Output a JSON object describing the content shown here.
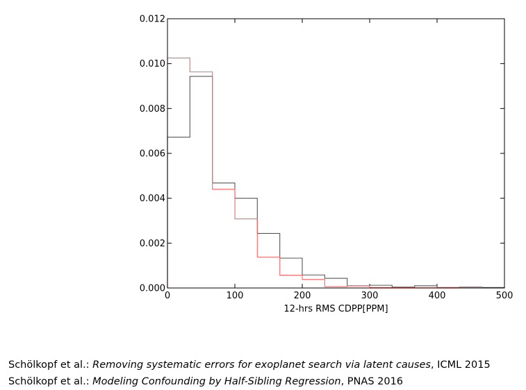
{
  "chart_data": {
    "type": "histogram",
    "title": "",
    "xlabel": "12-hrs RMS CDPP[PPM]",
    "ylabel": "",
    "xlim": [
      0,
      500
    ],
    "ylim": [
      0,
      0.012
    ],
    "x_ticks": [
      "0",
      "100",
      "200",
      "300",
      "400",
      "500"
    ],
    "y_ticks": [
      "0.000",
      "0.002",
      "0.004",
      "0.006",
      "0.008",
      "0.010",
      "0.012"
    ],
    "bin_edges": [
      0,
      33.3,
      66.7,
      100,
      133.3,
      166.7,
      200,
      233.3,
      266.7,
      300,
      333.3,
      366.7,
      400,
      433.3,
      466.7,
      500
    ],
    "grid": false,
    "series": [
      {
        "color": "#555555",
        "values": [
          0.00672,
          0.00943,
          0.00468,
          0.004,
          0.00243,
          0.00133,
          0.00058,
          0.00043,
          0.0001,
          0.00012,
          4e-05,
          0.0001,
          2e-05,
          4e-05,
          2e-05
        ]
      },
      {
        "color": "#ff6666",
        "values": [
          0.01025,
          0.00963,
          0.0044,
          0.00308,
          0.00138,
          0.00057,
          0.00038,
          6e-05,
          9e-05,
          2e-05,
          2e-05,
          1e-05,
          1e-05,
          5e-05,
          0.0
        ]
      }
    ]
  },
  "references": [
    {
      "authors": "Schölkopf et al.: ",
      "title": "Removing systematic errors for exoplanet search via latent causes",
      "venue": ", ICML 2015"
    },
    {
      "authors": "Schölkopf et al.: ",
      "title": "Modeling Confounding by Half-Sibling Regression",
      "venue": ", PNAS 2016"
    }
  ]
}
